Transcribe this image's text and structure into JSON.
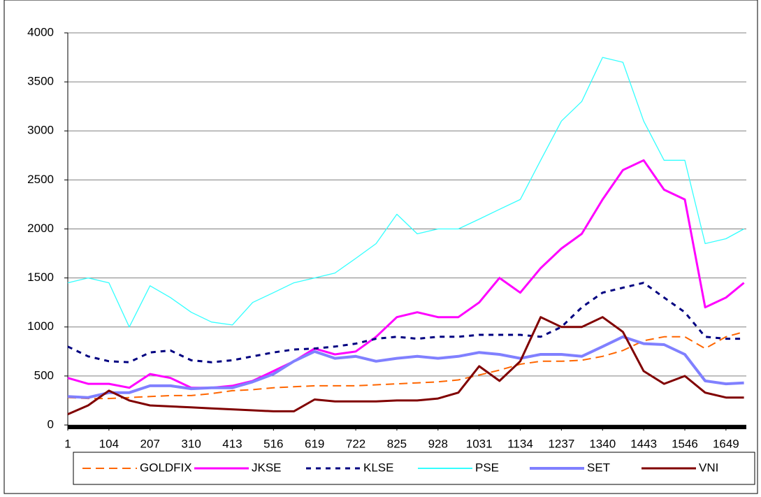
{
  "chart_data": {
    "type": "line",
    "x": [
      1,
      52,
      104,
      155,
      207,
      258,
      310,
      361,
      413,
      464,
      516,
      567,
      619,
      670,
      722,
      773,
      825,
      876,
      928,
      979,
      1031,
      1082,
      1134,
      1185,
      1237,
      1288,
      1340,
      1391,
      1443,
      1494,
      1546,
      1597,
      1649,
      1694
    ],
    "xlim": [
      1,
      1700
    ],
    "xticks": [
      1,
      104,
      207,
      310,
      413,
      516,
      619,
      722,
      825,
      928,
      1031,
      1134,
      1237,
      1340,
      1443,
      1546,
      1649
    ],
    "ylim": [
      0,
      4000
    ],
    "yticks": [
      0,
      500,
      1000,
      1500,
      2000,
      2500,
      3000,
      3500,
      4000
    ],
    "grid": true,
    "legend": "bottom",
    "series": [
      {
        "name": "GOLDFIX",
        "color": "#ff6600",
        "dash": "dashed",
        "width": 2,
        "values": [
          280,
          270,
          270,
          280,
          290,
          300,
          300,
          320,
          350,
          360,
          380,
          390,
          400,
          400,
          400,
          410,
          420,
          430,
          440,
          460,
          510,
          560,
          620,
          650,
          650,
          660,
          700,
          760,
          860,
          900,
          900,
          780,
          900,
          950
        ]
      },
      {
        "name": "JKSE",
        "color": "#ff00ff",
        "dash": "solid",
        "width": 3,
        "values": [
          480,
          420,
          420,
          380,
          520,
          480,
          380,
          380,
          400,
          450,
          550,
          650,
          780,
          720,
          750,
          900,
          1100,
          1150,
          1100,
          1100,
          1250,
          1500,
          1350,
          1600,
          1800,
          1950,
          2300,
          2600,
          2700,
          2400,
          2300,
          1200,
          1300,
          1450
        ]
      },
      {
        "name": "KLSE",
        "color": "#000080",
        "dash": "dotted",
        "width": 3,
        "values": [
          800,
          700,
          650,
          640,
          740,
          760,
          660,
          640,
          660,
          700,
          740,
          770,
          780,
          800,
          830,
          880,
          900,
          880,
          900,
          900,
          920,
          920,
          920,
          900,
          1000,
          1200,
          1350,
          1400,
          1450,
          1300,
          1150,
          900,
          880,
          880
        ]
      },
      {
        "name": "PSE",
        "color": "#33ffff",
        "dash": "solid",
        "width": 1.3,
        "values": [
          1450,
          1500,
          1450,
          1000,
          1420,
          1300,
          1150,
          1050,
          1020,
          1250,
          1350,
          1450,
          1500,
          1550,
          1700,
          1850,
          2150,
          1950,
          2000,
          2000,
          2100,
          2200,
          2300,
          2700,
          3100,
          3300,
          3750,
          3700,
          3100,
          2700,
          2700,
          1850,
          1900,
          2000
        ]
      },
      {
        "name": "SET",
        "color": "#8080ff",
        "dash": "solid",
        "width": 4,
        "values": [
          290,
          280,
          330,
          330,
          400,
          400,
          370,
          380,
          380,
          440,
          520,
          650,
          750,
          680,
          700,
          650,
          680,
          700,
          680,
          700,
          740,
          720,
          680,
          720,
          720,
          700,
          800,
          900,
          830,
          820,
          720,
          450,
          420,
          430
        ]
      },
      {
        "name": "VNI",
        "color": "#800000",
        "dash": "solid",
        "width": 3,
        "values": [
          110,
          200,
          350,
          250,
          200,
          190,
          180,
          170,
          160,
          150,
          140,
          140,
          260,
          240,
          240,
          240,
          250,
          250,
          270,
          330,
          600,
          450,
          650,
          1100,
          1000,
          1000,
          1100,
          950,
          550,
          420,
          500,
          330,
          280,
          280
        ]
      }
    ]
  }
}
